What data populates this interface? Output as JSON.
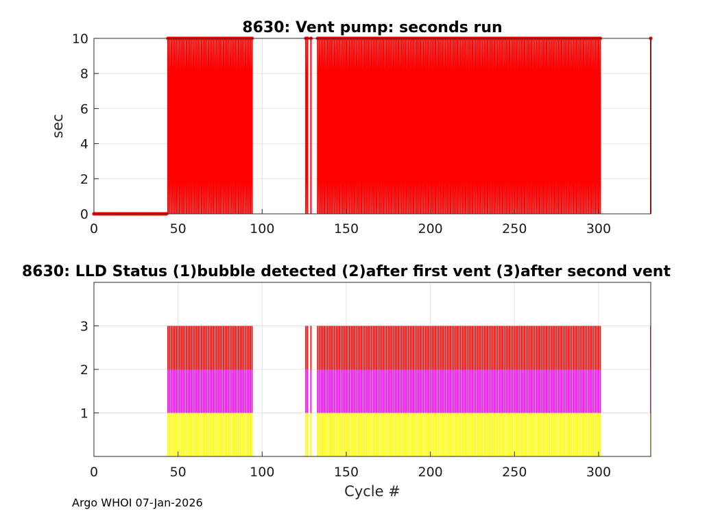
{
  "chart_data": [
    {
      "type": "line",
      "title": "8630: Vent pump: seconds run",
      "xlabel": "",
      "ylabel": "sec",
      "xlim": [
        0,
        331
      ],
      "ylim": [
        0,
        10
      ],
      "xticks": [
        0,
        50,
        100,
        150,
        200,
        250,
        300
      ],
      "yticks": [
        0,
        2,
        4,
        6,
        8,
        10
      ],
      "grid": true,
      "color": "#ff0000",
      "segments": [
        {
          "x_start": 0,
          "x_end": 43,
          "value": 0
        },
        {
          "x_start": 44,
          "x_end": 94,
          "value": 10
        },
        {
          "x_start": 126,
          "x_end": 127,
          "value": 10
        },
        {
          "x_start": 129,
          "x_end": 129,
          "value": 10
        },
        {
          "x_start": 133,
          "x_end": 301,
          "value": 10
        },
        {
          "x_start": 331,
          "x_end": 331,
          "value": 10
        }
      ]
    },
    {
      "type": "bar",
      "title": "8630: LLD Status   (1)bubble detected   (2)after first vent  (3)after second vent",
      "xlabel": "Cycle #",
      "ylabel": "",
      "xlim": [
        0,
        331
      ],
      "ylim": [
        0,
        4
      ],
      "xticks": [
        0,
        50,
        100,
        150,
        200,
        250,
        300
      ],
      "yticks": [
        1,
        2,
        3
      ],
      "grid": true,
      "stack": [
        {
          "name": "(1)bubble detected",
          "range": [
            0,
            1
          ],
          "color": "#ffff00"
        },
        {
          "name": "(2)after first vent",
          "range": [
            1,
            2
          ],
          "color": "#ff00ff"
        },
        {
          "name": "(3)after second vent",
          "range": [
            2,
            3
          ],
          "color": "#ff0000"
        }
      ],
      "cycle_ranges": [
        {
          "x_start": 44,
          "x_end": 94
        },
        {
          "x_start": 126,
          "x_end": 127
        },
        {
          "x_start": 129,
          "x_end": 129
        },
        {
          "x_start": 133,
          "x_end": 301
        },
        {
          "x_start": 331,
          "x_end": 331
        }
      ]
    }
  ],
  "footer": "Argo WHOI 07-Jan-2026"
}
